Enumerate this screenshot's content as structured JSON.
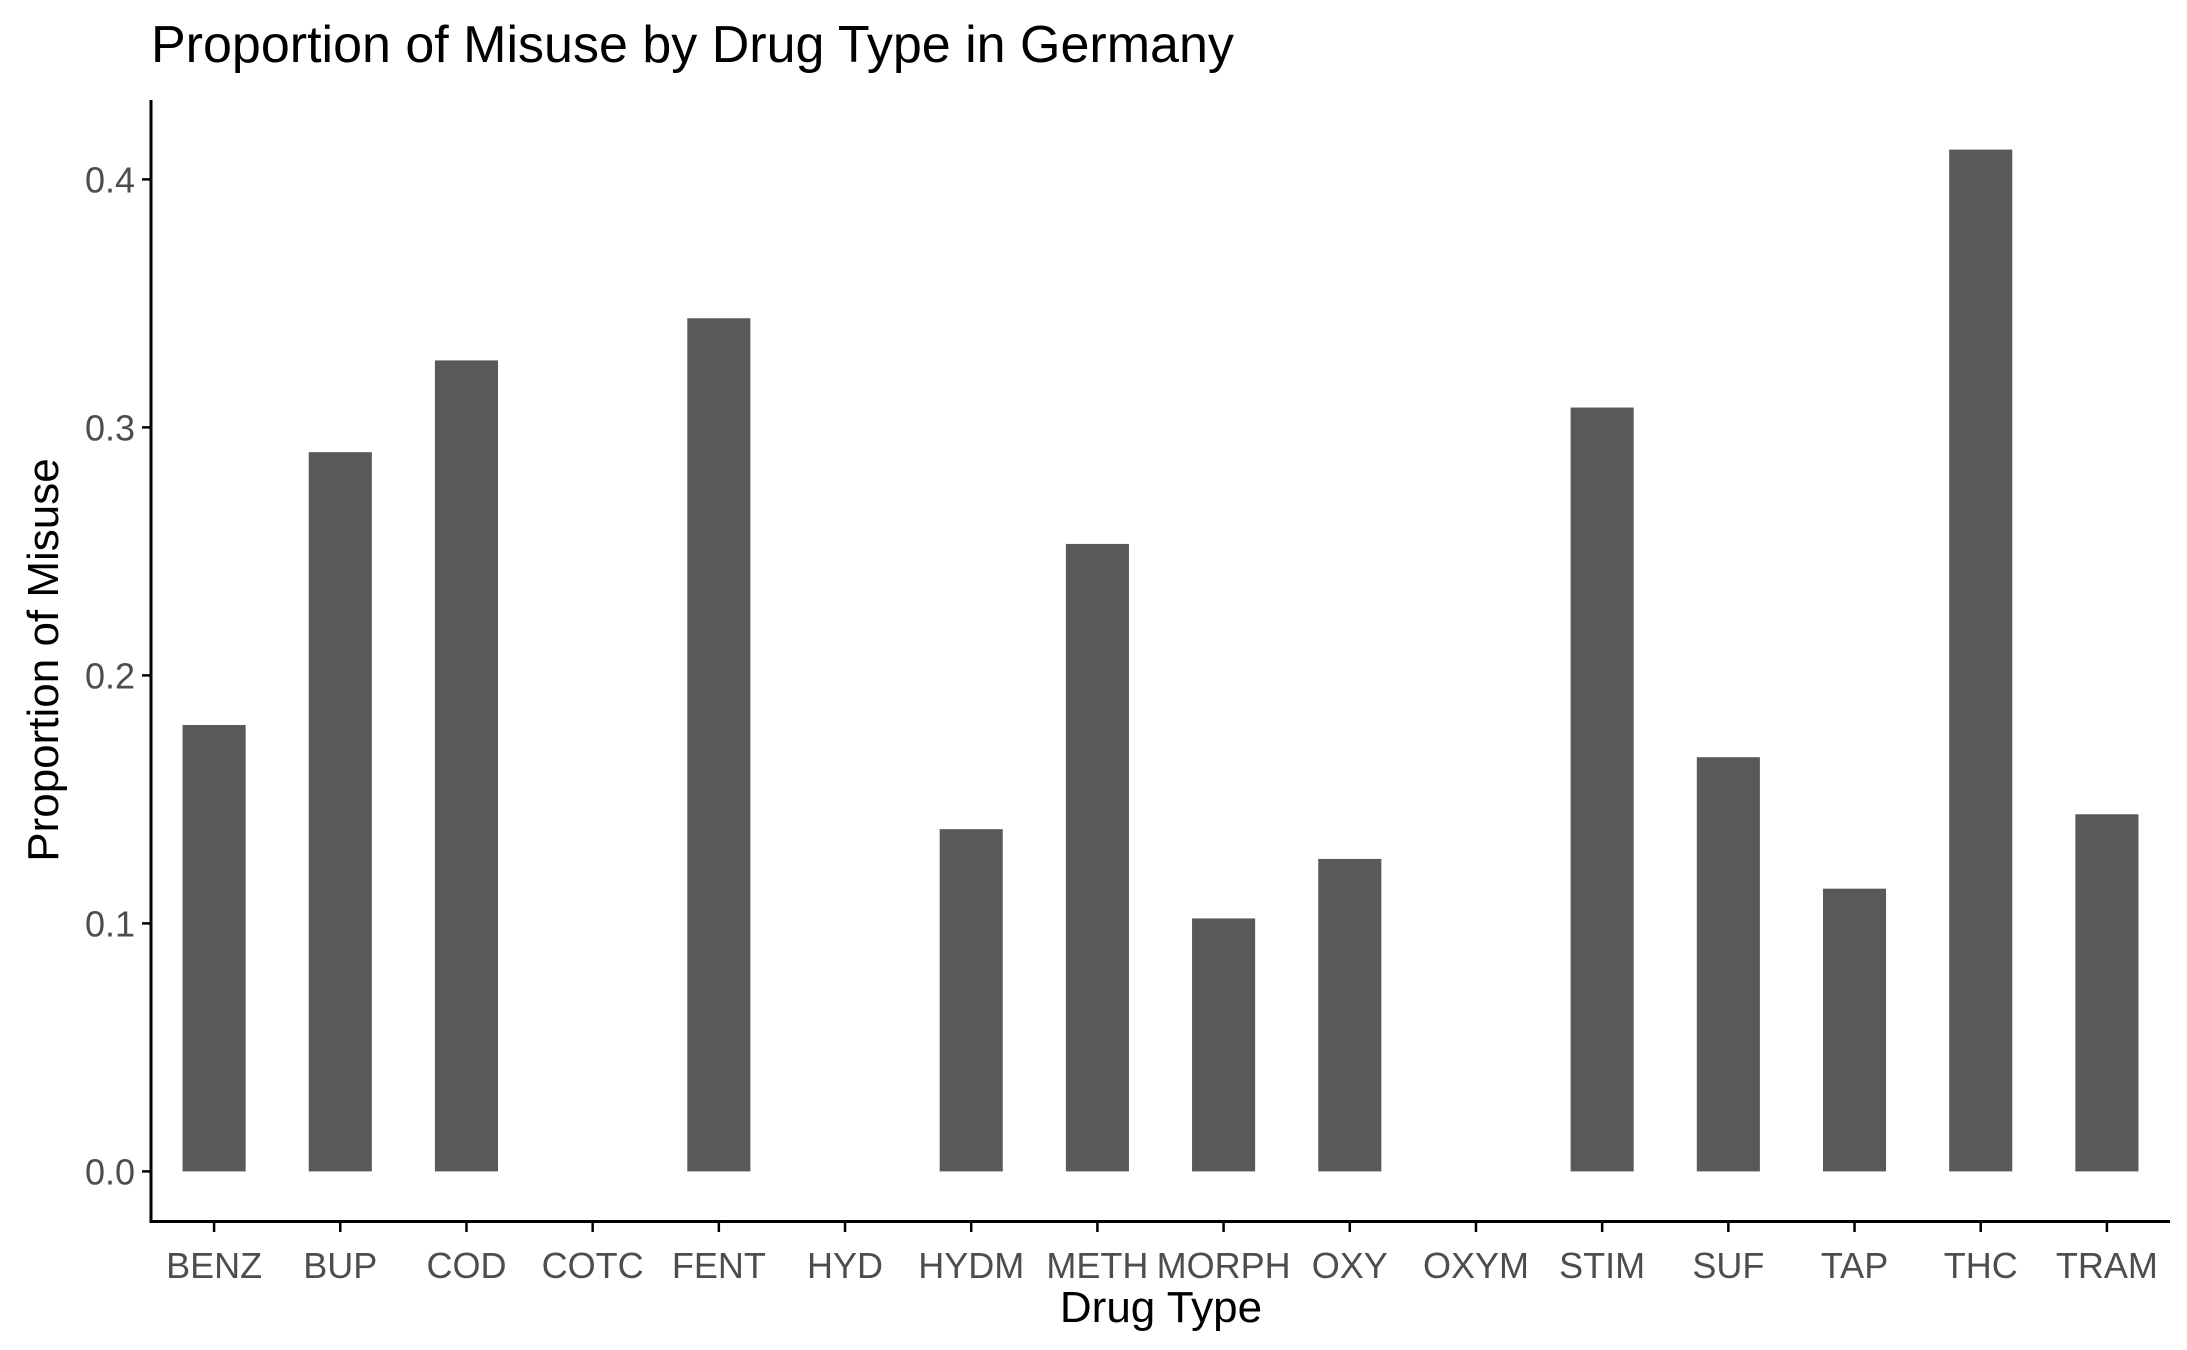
{
  "chart_data": {
    "type": "bar",
    "title": "Proportion of Misuse by Drug Type in Germany",
    "xlabel": "Drug Type",
    "ylabel": "Proportion of Misuse",
    "categories": [
      "BENZ",
      "BUP",
      "COD",
      "COTC",
      "FENT",
      "HYD",
      "HYDM",
      "METH",
      "MORPH",
      "OXY",
      "OXYM",
      "STIM",
      "SUF",
      "TAP",
      "THC",
      "TRAM"
    ],
    "values": [
      0.18,
      0.29,
      0.327,
      0.0,
      0.344,
      0.0,
      0.138,
      0.253,
      0.102,
      0.126,
      0.0,
      0.308,
      0.167,
      0.114,
      0.412,
      0.144
    ],
    "yticks": [
      0.0,
      0.1,
      0.2,
      0.3,
      0.4
    ],
    "ytick_labels": [
      "0.0",
      "0.1",
      "0.2",
      "0.3",
      "0.4"
    ],
    "ylim": [
      -0.02,
      0.432
    ],
    "bar_color": "#595959",
    "grid": false,
    "legend": "none"
  }
}
